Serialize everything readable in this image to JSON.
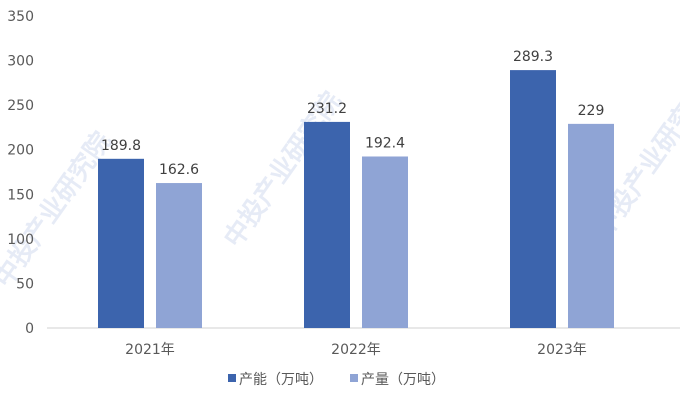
{
  "chart_data": {
    "type": "bar",
    "categories": [
      "2021年",
      "2022年",
      "2023年"
    ],
    "series": [
      {
        "name": "产能（万吨）",
        "values": [
          189.8,
          231.2,
          289.3
        ],
        "color": "#3c64ad"
      },
      {
        "name": "产量（万吨）",
        "values": [
          162.6,
          192.4,
          229
        ],
        "color": "#8fa4d5"
      }
    ],
    "title": "",
    "xlabel": "",
    "ylabel": "",
    "ylim": [
      0,
      350
    ],
    "yticks": [
      0,
      50,
      100,
      150,
      200,
      250,
      300,
      350
    ],
    "grid": false,
    "legend": "bottom",
    "data_labels": true
  },
  "watermark": "中投产业研究院"
}
